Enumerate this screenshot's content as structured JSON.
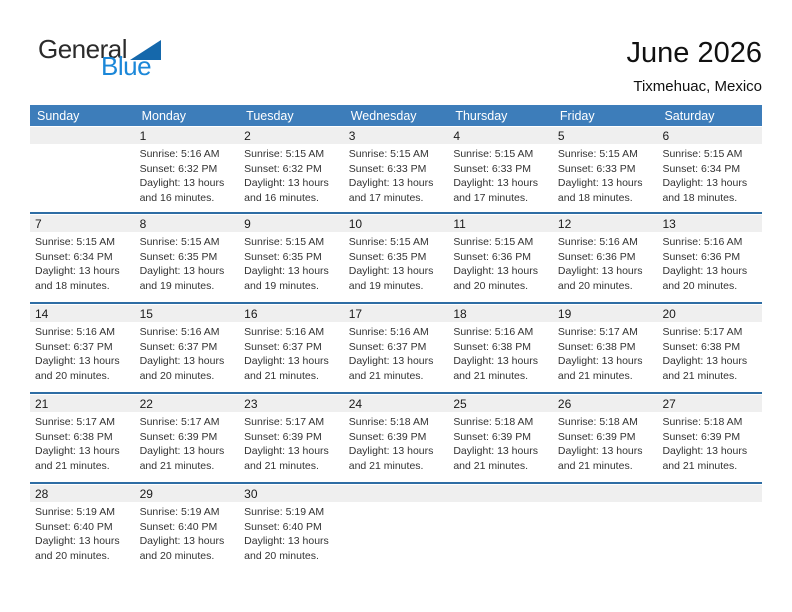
{
  "logo": {
    "general": "General",
    "blue": "Blue"
  },
  "header": {
    "title": "June 2026",
    "subtitle": "Tixmehuac, Mexico"
  },
  "colors": {
    "header_band_blue": "#3d7dba",
    "week_separator_blue": "#2e6da4",
    "day_number_band_gray": "#efefef",
    "logo_text_blue": "#1b87d8",
    "logo_triangle_blue": "#1568ab"
  },
  "calendar": {
    "day_headers": [
      "Sunday",
      "Monday",
      "Tuesday",
      "Wednesday",
      "Thursday",
      "Friday",
      "Saturday"
    ],
    "weeks": [
      [
        null,
        {
          "day": "1",
          "sunrise": "Sunrise: 5:16 AM",
          "sunset": "Sunset: 6:32 PM",
          "daylight": "Daylight: 13 hours and 16 minutes."
        },
        {
          "day": "2",
          "sunrise": "Sunrise: 5:15 AM",
          "sunset": "Sunset: 6:32 PM",
          "daylight": "Daylight: 13 hours and 16 minutes."
        },
        {
          "day": "3",
          "sunrise": "Sunrise: 5:15 AM",
          "sunset": "Sunset: 6:33 PM",
          "daylight": "Daylight: 13 hours and 17 minutes."
        },
        {
          "day": "4",
          "sunrise": "Sunrise: 5:15 AM",
          "sunset": "Sunset: 6:33 PM",
          "daylight": "Daylight: 13 hours and 17 minutes."
        },
        {
          "day": "5",
          "sunrise": "Sunrise: 5:15 AM",
          "sunset": "Sunset: 6:33 PM",
          "daylight": "Daylight: 13 hours and 18 minutes."
        },
        {
          "day": "6",
          "sunrise": "Sunrise: 5:15 AM",
          "sunset": "Sunset: 6:34 PM",
          "daylight": "Daylight: 13 hours and 18 minutes."
        }
      ],
      [
        {
          "day": "7",
          "sunrise": "Sunrise: 5:15 AM",
          "sunset": "Sunset: 6:34 PM",
          "daylight": "Daylight: 13 hours and 18 minutes."
        },
        {
          "day": "8",
          "sunrise": "Sunrise: 5:15 AM",
          "sunset": "Sunset: 6:35 PM",
          "daylight": "Daylight: 13 hours and 19 minutes."
        },
        {
          "day": "9",
          "sunrise": "Sunrise: 5:15 AM",
          "sunset": "Sunset: 6:35 PM",
          "daylight": "Daylight: 13 hours and 19 minutes."
        },
        {
          "day": "10",
          "sunrise": "Sunrise: 5:15 AM",
          "sunset": "Sunset: 6:35 PM",
          "daylight": "Daylight: 13 hours and 19 minutes."
        },
        {
          "day": "11",
          "sunrise": "Sunrise: 5:15 AM",
          "sunset": "Sunset: 6:36 PM",
          "daylight": "Daylight: 13 hours and 20 minutes."
        },
        {
          "day": "12",
          "sunrise": "Sunrise: 5:16 AM",
          "sunset": "Sunset: 6:36 PM",
          "daylight": "Daylight: 13 hours and 20 minutes."
        },
        {
          "day": "13",
          "sunrise": "Sunrise: 5:16 AM",
          "sunset": "Sunset: 6:36 PM",
          "daylight": "Daylight: 13 hours and 20 minutes."
        }
      ],
      [
        {
          "day": "14",
          "sunrise": "Sunrise: 5:16 AM",
          "sunset": "Sunset: 6:37 PM",
          "daylight": "Daylight: 13 hours and 20 minutes."
        },
        {
          "day": "15",
          "sunrise": "Sunrise: 5:16 AM",
          "sunset": "Sunset: 6:37 PM",
          "daylight": "Daylight: 13 hours and 20 minutes."
        },
        {
          "day": "16",
          "sunrise": "Sunrise: 5:16 AM",
          "sunset": "Sunset: 6:37 PM",
          "daylight": "Daylight: 13 hours and 21 minutes."
        },
        {
          "day": "17",
          "sunrise": "Sunrise: 5:16 AM",
          "sunset": "Sunset: 6:37 PM",
          "daylight": "Daylight: 13 hours and 21 minutes."
        },
        {
          "day": "18",
          "sunrise": "Sunrise: 5:16 AM",
          "sunset": "Sunset: 6:38 PM",
          "daylight": "Daylight: 13 hours and 21 minutes."
        },
        {
          "day": "19",
          "sunrise": "Sunrise: 5:17 AM",
          "sunset": "Sunset: 6:38 PM",
          "daylight": "Daylight: 13 hours and 21 minutes."
        },
        {
          "day": "20",
          "sunrise": "Sunrise: 5:17 AM",
          "sunset": "Sunset: 6:38 PM",
          "daylight": "Daylight: 13 hours and 21 minutes."
        }
      ],
      [
        {
          "day": "21",
          "sunrise": "Sunrise: 5:17 AM",
          "sunset": "Sunset: 6:38 PM",
          "daylight": "Daylight: 13 hours and 21 minutes."
        },
        {
          "day": "22",
          "sunrise": "Sunrise: 5:17 AM",
          "sunset": "Sunset: 6:39 PM",
          "daylight": "Daylight: 13 hours and 21 minutes."
        },
        {
          "day": "23",
          "sunrise": "Sunrise: 5:17 AM",
          "sunset": "Sunset: 6:39 PM",
          "daylight": "Daylight: 13 hours and 21 minutes."
        },
        {
          "day": "24",
          "sunrise": "Sunrise: 5:18 AM",
          "sunset": "Sunset: 6:39 PM",
          "daylight": "Daylight: 13 hours and 21 minutes."
        },
        {
          "day": "25",
          "sunrise": "Sunrise: 5:18 AM",
          "sunset": "Sunset: 6:39 PM",
          "daylight": "Daylight: 13 hours and 21 minutes."
        },
        {
          "day": "26",
          "sunrise": "Sunrise: 5:18 AM",
          "sunset": "Sunset: 6:39 PM",
          "daylight": "Daylight: 13 hours and 21 minutes."
        },
        {
          "day": "27",
          "sunrise": "Sunrise: 5:18 AM",
          "sunset": "Sunset: 6:39 PM",
          "daylight": "Daylight: 13 hours and 21 minutes."
        }
      ],
      [
        {
          "day": "28",
          "sunrise": "Sunrise: 5:19 AM",
          "sunset": "Sunset: 6:40 PM",
          "daylight": "Daylight: 13 hours and 20 minutes."
        },
        {
          "day": "29",
          "sunrise": "Sunrise: 5:19 AM",
          "sunset": "Sunset: 6:40 PM",
          "daylight": "Daylight: 13 hours and 20 minutes."
        },
        {
          "day": "30",
          "sunrise": "Sunrise: 5:19 AM",
          "sunset": "Sunset: 6:40 PM",
          "daylight": "Daylight: 13 hours and 20 minutes."
        },
        null,
        null,
        null,
        null
      ]
    ]
  }
}
